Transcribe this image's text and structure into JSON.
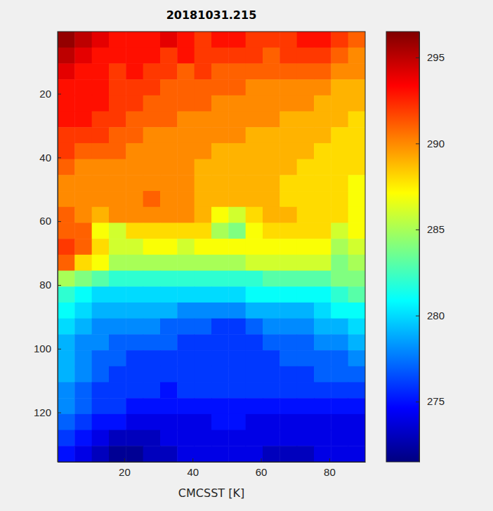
{
  "chart_data": {
    "type": "heatmap",
    "title": "20181031.215",
    "x_label": "CMCSST [K]",
    "xlim": [
      0.5,
      90.5
    ],
    "xticks": [
      20,
      40,
      60,
      80
    ],
    "ylim": [
      135.5,
      0.5
    ],
    "yticks": [
      20,
      40,
      60,
      80,
      100,
      120
    ],
    "x_bins": [
      0.5,
      5.5,
      10.5,
      15.5,
      20.5,
      25.5,
      30.5,
      35.5,
      40.5,
      45.5,
      50.5,
      55.5,
      60.5,
      65.5,
      70.5,
      75.5,
      80.5,
      85.5,
      90.5
    ],
    "y_bins": [
      0.5,
      5.5,
      10.5,
      15.5,
      20.5,
      25.5,
      30.5,
      35.5,
      40.5,
      45.5,
      50.5,
      55.5,
      60.5,
      65.5,
      70.5,
      75.5,
      80.5,
      85.5,
      90.5,
      95.5,
      100.5,
      105.5,
      110.5,
      115.5,
      120.5,
      125.5,
      130.5,
      135.5
    ],
    "z": [
      [
        296,
        295,
        294,
        293,
        293,
        293,
        294,
        293,
        292,
        293,
        293,
        292,
        292,
        292,
        293,
        293,
        292,
        291
      ],
      [
        295,
        294,
        293,
        293,
        293,
        293,
        292,
        293,
        292,
        292,
        292,
        292,
        291,
        292,
        292,
        292,
        291,
        290
      ],
      [
        294,
        293,
        293,
        292,
        293,
        292,
        292,
        291,
        292,
        291,
        291,
        291,
        291,
        291,
        291,
        291,
        290,
        290
      ],
      [
        293,
        293,
        293,
        292,
        292,
        292,
        291,
        291,
        291,
        291,
        291,
        290,
        290,
        290,
        290,
        290,
        289,
        289
      ],
      [
        293,
        293,
        293,
        292,
        292,
        291,
        291,
        291,
        291,
        290,
        290,
        290,
        290,
        290,
        290,
        289,
        289,
        289
      ],
      [
        293,
        293,
        292,
        292,
        291,
        291,
        291,
        290,
        290,
        290,
        290,
        290,
        290,
        289,
        289,
        289,
        289,
        288
      ],
      [
        292,
        292,
        292,
        291,
        291,
        290,
        290,
        290,
        290,
        290,
        290,
        289,
        289,
        289,
        289,
        289,
        288,
        288
      ],
      [
        292,
        291,
        291,
        291,
        290,
        290,
        290,
        290,
        290,
        289,
        289,
        289,
        289,
        289,
        289,
        288,
        288,
        288
      ],
      [
        291,
        290,
        290,
        290,
        290,
        290,
        290,
        290,
        289,
        289,
        289,
        289,
        289,
        289,
        288,
        288,
        288,
        288
      ],
      [
        290,
        290,
        290,
        290,
        290,
        290,
        290,
        290,
        289,
        289,
        289,
        289,
        289,
        288,
        288,
        288,
        288,
        287
      ],
      [
        290,
        290,
        290,
        290,
        290,
        291,
        290,
        290,
        289,
        289,
        289,
        289,
        289,
        288,
        288,
        288,
        288,
        287
      ],
      [
        291,
        290,
        289,
        290,
        290,
        290,
        290,
        290,
        289,
        287,
        286,
        288,
        289,
        289,
        288,
        288,
        288,
        287
      ],
      [
        291,
        291,
        287,
        286,
        288,
        288,
        288,
        288,
        288,
        285,
        284,
        287,
        288,
        288,
        288,
        288,
        286,
        287
      ],
      [
        292,
        291,
        288,
        286,
        286,
        287,
        287,
        286,
        287,
        287,
        287,
        287,
        287,
        287,
        287,
        287,
        285,
        286
      ],
      [
        291,
        288,
        287,
        285,
        285,
        285,
        285,
        285,
        285,
        285,
        285,
        286,
        286,
        286,
        286,
        286,
        284,
        285
      ],
      [
        285,
        284,
        283,
        282,
        282,
        282,
        282,
        282,
        282,
        282,
        282,
        282,
        283,
        283,
        283,
        283,
        284,
        284
      ],
      [
        282,
        281,
        280,
        280,
        280,
        280,
        280,
        280,
        280,
        280,
        280,
        281,
        281,
        281,
        281,
        281,
        282,
        283
      ],
      [
        281,
        280,
        279,
        279,
        279,
        279,
        279,
        278,
        278,
        278,
        278,
        279,
        279,
        279,
        279,
        280,
        281,
        281
      ],
      [
        280,
        279,
        278,
        278,
        278,
        278,
        277,
        277,
        277,
        276,
        276,
        277,
        278,
        278,
        278,
        279,
        279,
        280
      ],
      [
        279,
        278,
        278,
        277,
        277,
        277,
        277,
        276,
        276,
        276,
        276,
        276,
        277,
        277,
        277,
        278,
        278,
        279
      ],
      [
        279,
        278,
        277,
        277,
        276,
        276,
        276,
        276,
        276,
        276,
        276,
        276,
        276,
        277,
        277,
        277,
        277,
        278
      ],
      [
        279,
        278,
        277,
        276,
        276,
        276,
        276,
        276,
        276,
        276,
        276,
        276,
        276,
        276,
        276,
        277,
        277,
        277
      ],
      [
        278,
        277,
        276,
        276,
        276,
        276,
        275,
        276,
        276,
        276,
        276,
        276,
        276,
        276,
        276,
        276,
        276,
        276
      ],
      [
        278,
        277,
        276,
        276,
        275,
        275,
        275,
        275,
        275,
        275,
        275,
        275,
        275,
        275,
        275,
        275,
        275,
        275
      ],
      [
        277,
        276,
        275,
        275,
        274,
        274,
        274,
        274,
        274,
        275,
        275,
        274,
        274,
        274,
        274,
        274,
        274,
        274
      ],
      [
        276,
        275,
        274,
        273,
        273,
        273,
        274,
        274,
        274,
        274,
        274,
        274,
        274,
        274,
        274,
        274,
        274,
        274
      ],
      [
        275,
        274,
        273,
        272,
        272,
        273,
        273,
        274,
        274,
        274,
        274,
        274,
        273,
        273,
        273,
        274,
        274,
        274
      ]
    ],
    "colorbar": {
      "range": [
        271.5,
        296.5
      ],
      "ticks": [
        275,
        280,
        285,
        290,
        295
      ]
    }
  }
}
